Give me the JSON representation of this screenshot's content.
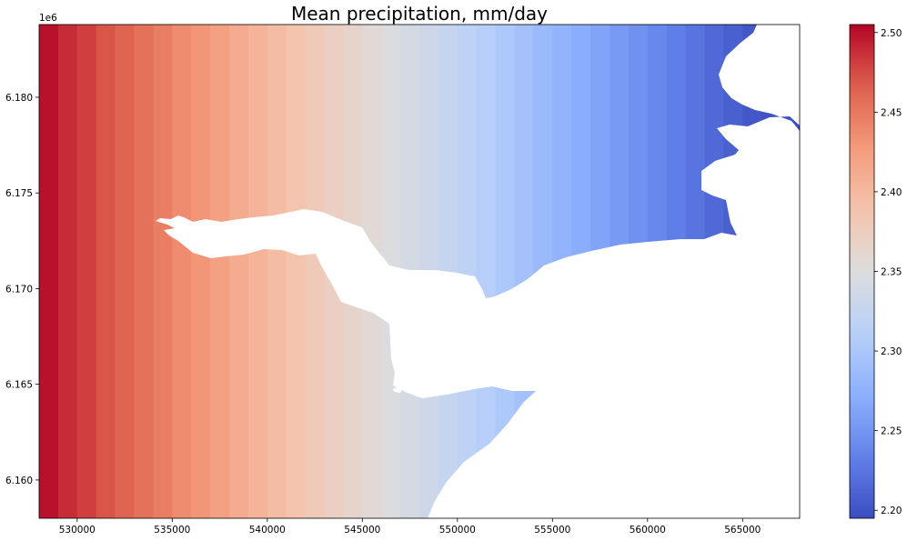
{
  "chart_data": {
    "type": "heatmap",
    "title": "Mean precipitation, mm/day",
    "xlabel": "",
    "ylabel": "",
    "y_offset_label": "1e6",
    "xlim": [
      528000,
      568000
    ],
    "ylim": [
      6.158,
      6.1838
    ],
    "x_ticks": [
      530000,
      535000,
      540000,
      545000,
      550000,
      555000,
      560000,
      565000
    ],
    "x_tick_labels": [
      "530000",
      "535000",
      "540000",
      "545000",
      "550000",
      "555000",
      "560000",
      "565000"
    ],
    "y_ticks": [
      6.16,
      6.165,
      6.17,
      6.175,
      6.18
    ],
    "y_tick_labels": [
      "6.160",
      "6.165",
      "6.170",
      "6.175",
      "6.180"
    ],
    "grid": false,
    "colormap": "coolwarm",
    "colorbar": {
      "vmin": 2.195,
      "vmax": 2.505,
      "ticks": [
        2.2,
        2.25,
        2.3,
        2.35,
        2.4,
        2.45,
        2.5
      ],
      "tick_labels": [
        "2.20",
        "2.25",
        "2.30",
        "2.35",
        "2.40",
        "2.45",
        "2.50"
      ]
    },
    "cell_width": 1000,
    "column_centers": [
      528500,
      529500,
      530500,
      531500,
      532500,
      533500,
      534500,
      535500,
      536500,
      537500,
      538500,
      539500,
      540500,
      541500,
      542500,
      543500,
      544500,
      545500,
      546500,
      547500,
      548500,
      549500,
      550500,
      551500,
      552500,
      553500,
      554500,
      555500,
      556500,
      557500,
      558500,
      559500,
      560500,
      561500,
      562500,
      563500,
      564500,
      565500,
      566500,
      567500
    ],
    "column_values": [
      2.5,
      2.488,
      2.48,
      2.471,
      2.463,
      2.455,
      2.446,
      2.437,
      2.43,
      2.421,
      2.412,
      2.404,
      2.396,
      2.388,
      2.38,
      2.372,
      2.364,
      2.356,
      2.348,
      2.34,
      2.333,
      2.325,
      2.317,
      2.309,
      2.301,
      2.293,
      2.285,
      2.277,
      2.27,
      2.262,
      2.254,
      2.246,
      2.239,
      2.231,
      2.224,
      2.216,
      2.209,
      2.203,
      2.2,
      2.198
    ]
  }
}
